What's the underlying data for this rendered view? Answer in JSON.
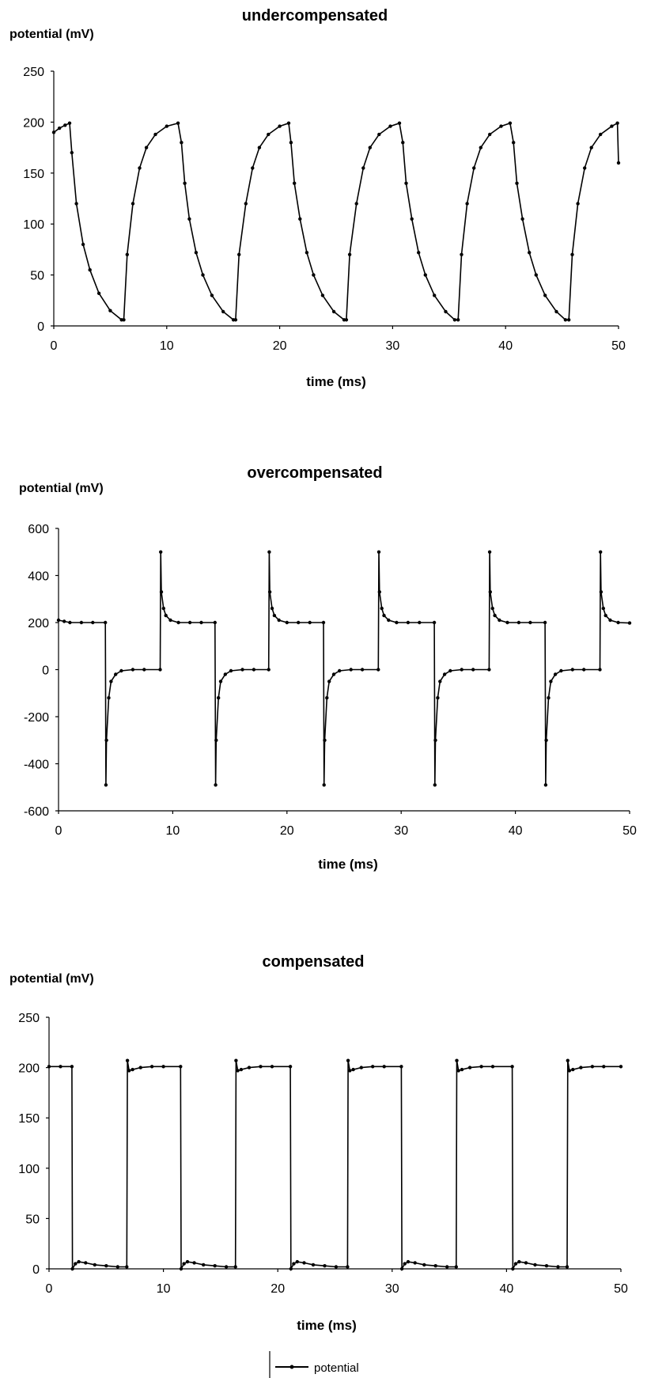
{
  "chart_data": [
    {
      "type": "line",
      "title": "undercompensated",
      "ylabel": "potential (mV)",
      "xlabel": "time (ms)",
      "xlim": [
        0,
        50
      ],
      "ylim": [
        0,
        250
      ],
      "xticks": [
        0,
        10,
        20,
        30,
        40,
        50
      ],
      "yticks": [
        0,
        50,
        100,
        150,
        200,
        250
      ],
      "waveform": "exponential square-wave response, period ~9.8 ms, charging up to 200 mV, discharging toward ~5 mV",
      "series": [
        {
          "name": "potential",
          "x": [
            0,
            0.5,
            1.0,
            1.4,
            1.6,
            2.0,
            2.6,
            3.2,
            4.0,
            5.0,
            6.0,
            6.2,
            6.5,
            7.0,
            7.6,
            8.2,
            9.0,
            10.0,
            11.0,
            11.3,
            11.6,
            12.0,
            12.6,
            13.2,
            14.0,
            15.0,
            15.9,
            16.1,
            16.4,
            17.0,
            17.6,
            18.2,
            19.0,
            20.0,
            20.8,
            21.0,
            21.3,
            21.8,
            22.4,
            23.0,
            23.8,
            24.8,
            25.7,
            25.9,
            26.2,
            26.8,
            27.4,
            28.0,
            28.8,
            29.8,
            30.6,
            30.9,
            31.2,
            31.7,
            32.3,
            32.9,
            33.7,
            34.7,
            35.5,
            35.8,
            36.1,
            36.6,
            37.2,
            37.8,
            38.6,
            39.6,
            40.4,
            40.7,
            41.0,
            41.5,
            42.1,
            42.7,
            43.5,
            44.5,
            45.3,
            45.6,
            45.9,
            46.4,
            47.0,
            47.6,
            48.4,
            49.4,
            49.9,
            50.0
          ],
          "y": [
            190,
            194,
            197,
            199,
            170,
            120,
            80,
            55,
            32,
            15,
            6,
            6,
            70,
            120,
            155,
            175,
            188,
            196,
            199,
            180,
            140,
            105,
            72,
            50,
            30,
            14,
            6,
            6,
            70,
            120,
            155,
            175,
            188,
            196,
            199,
            180,
            140,
            105,
            72,
            50,
            30,
            14,
            6,
            6,
            70,
            120,
            155,
            175,
            188,
            196,
            199,
            180,
            140,
            105,
            72,
            50,
            30,
            14,
            6,
            6,
            70,
            120,
            155,
            175,
            188,
            196,
            199,
            180,
            140,
            105,
            72,
            50,
            30,
            14,
            6,
            6,
            70,
            120,
            155,
            175,
            188,
            196,
            199,
            160
          ]
        }
      ]
    },
    {
      "type": "line",
      "title": "overcompensated",
      "ylabel": "potential (mV)",
      "xlabel": "time (ms)",
      "xlim": [
        0,
        50
      ],
      "ylim": [
        -600,
        600
      ],
      "xticks": [
        0,
        10,
        20,
        30,
        40,
        50
      ],
      "yticks": [
        -600,
        -400,
        -200,
        0,
        200,
        400,
        600
      ],
      "waveform": "square wave 0/200 mV with ±500 mV overshoot spikes at each transition, period ~9.7 ms",
      "series": [
        {
          "name": "potential",
          "x": [
            0,
            0.5,
            1.0,
            2.0,
            3.0,
            4.1,
            4.15,
            4.2,
            4.4,
            4.6,
            5.0,
            5.5,
            6.5,
            7.5,
            8.9,
            8.95,
            9.0,
            9.2,
            9.4,
            9.8,
            10.5,
            11.5,
            12.5,
            13.7,
            13.75,
            13.8,
            14.0,
            14.2,
            14.6,
            15.1,
            16.1,
            17.1,
            18.4,
            18.45,
            18.5,
            18.7,
            18.9,
            19.3,
            20.0,
            21.0,
            22.0,
            23.2,
            23.25,
            23.3,
            23.5,
            23.7,
            24.1,
            24.6,
            25.6,
            26.6,
            28.0,
            28.05,
            28.1,
            28.3,
            28.5,
            28.9,
            29.6,
            30.6,
            31.6,
            32.9,
            32.95,
            33.0,
            33.2,
            33.4,
            33.8,
            34.3,
            35.3,
            36.3,
            37.7,
            37.75,
            37.8,
            38.0,
            38.2,
            38.6,
            39.3,
            40.3,
            41.3,
            42.6,
            42.65,
            42.7,
            42.9,
            43.1,
            43.5,
            44.0,
            45.0,
            46.0,
            47.4,
            47.45,
            47.5,
            47.7,
            47.9,
            48.3,
            49.0,
            50.0
          ],
          "y": [
            210,
            205,
            200,
            200,
            200,
            200,
            -490,
            -300,
            -120,
            -50,
            -20,
            -5,
            0,
            0,
            0,
            500,
            330,
            260,
            230,
            210,
            200,
            200,
            200,
            200,
            -490,
            -300,
            -120,
            -50,
            -20,
            -5,
            0,
            0,
            0,
            500,
            330,
            260,
            230,
            210,
            200,
            200,
            200,
            200,
            -490,
            -300,
            -120,
            -50,
            -20,
            -5,
            0,
            0,
            0,
            500,
            330,
            260,
            230,
            210,
            200,
            200,
            200,
            200,
            -490,
            -300,
            -120,
            -50,
            -20,
            -5,
            0,
            0,
            0,
            500,
            330,
            260,
            230,
            210,
            200,
            200,
            200,
            200,
            -490,
            -300,
            -120,
            -50,
            -20,
            -5,
            0,
            0,
            0,
            500,
            330,
            260,
            230,
            210,
            200,
            198
          ]
        }
      ]
    },
    {
      "type": "line",
      "title": "compensated",
      "ylabel": "potential (mV)",
      "xlabel": "time (ms)",
      "xlim": [
        0,
        50
      ],
      "ylim": [
        0,
        250
      ],
      "xticks": [
        0,
        10,
        20,
        30,
        40,
        50
      ],
      "yticks": [
        0,
        50,
        100,
        150,
        200,
        250
      ],
      "waveform": "near-ideal square wave 0/200 mV, period ~9.7 ms",
      "series": [
        {
          "name": "potential",
          "x": [
            0,
            1.0,
            2.0,
            2.05,
            2.3,
            2.6,
            3.2,
            4.0,
            5.0,
            6.0,
            6.8,
            6.85,
            7.0,
            7.3,
            8.0,
            9.0,
            10.0,
            11.5,
            11.55,
            11.8,
            12.1,
            12.7,
            13.5,
            14.5,
            15.5,
            16.3,
            16.35,
            16.5,
            16.8,
            17.5,
            18.5,
            19.5,
            21.1,
            21.15,
            21.4,
            21.7,
            22.3,
            23.1,
            24.1,
            25.1,
            26.1,
            26.15,
            26.3,
            26.6,
            27.3,
            28.3,
            29.3,
            30.8,
            30.85,
            31.1,
            31.4,
            32.0,
            32.8,
            33.8,
            34.8,
            35.6,
            35.65,
            35.8,
            36.1,
            36.8,
            37.8,
            38.8,
            40.5,
            40.55,
            40.8,
            41.1,
            41.7,
            42.5,
            43.5,
            44.5,
            45.3,
            45.35,
            45.5,
            45.8,
            46.5,
            47.5,
            48.5,
            50.0
          ],
          "y": [
            201,
            201,
            201,
            0,
            5,
            7,
            6,
            4,
            3,
            2,
            2,
            207,
            197,
            198,
            200,
            201,
            201,
            201,
            0,
            5,
            7,
            6,
            4,
            3,
            2,
            2,
            207,
            197,
            198,
            200,
            201,
            201,
            201,
            0,
            5,
            7,
            6,
            4,
            3,
            2,
            2,
            207,
            197,
            198,
            200,
            201,
            201,
            201,
            0,
            5,
            7,
            6,
            4,
            3,
            2,
            2,
            207,
            197,
            198,
            200,
            201,
            201,
            201,
            0,
            5,
            7,
            6,
            4,
            3,
            2,
            2,
            207,
            197,
            198,
            200,
            201,
            201,
            201
          ]
        }
      ]
    }
  ],
  "legend": {
    "label": "potential",
    "placement": "bottom-center"
  }
}
